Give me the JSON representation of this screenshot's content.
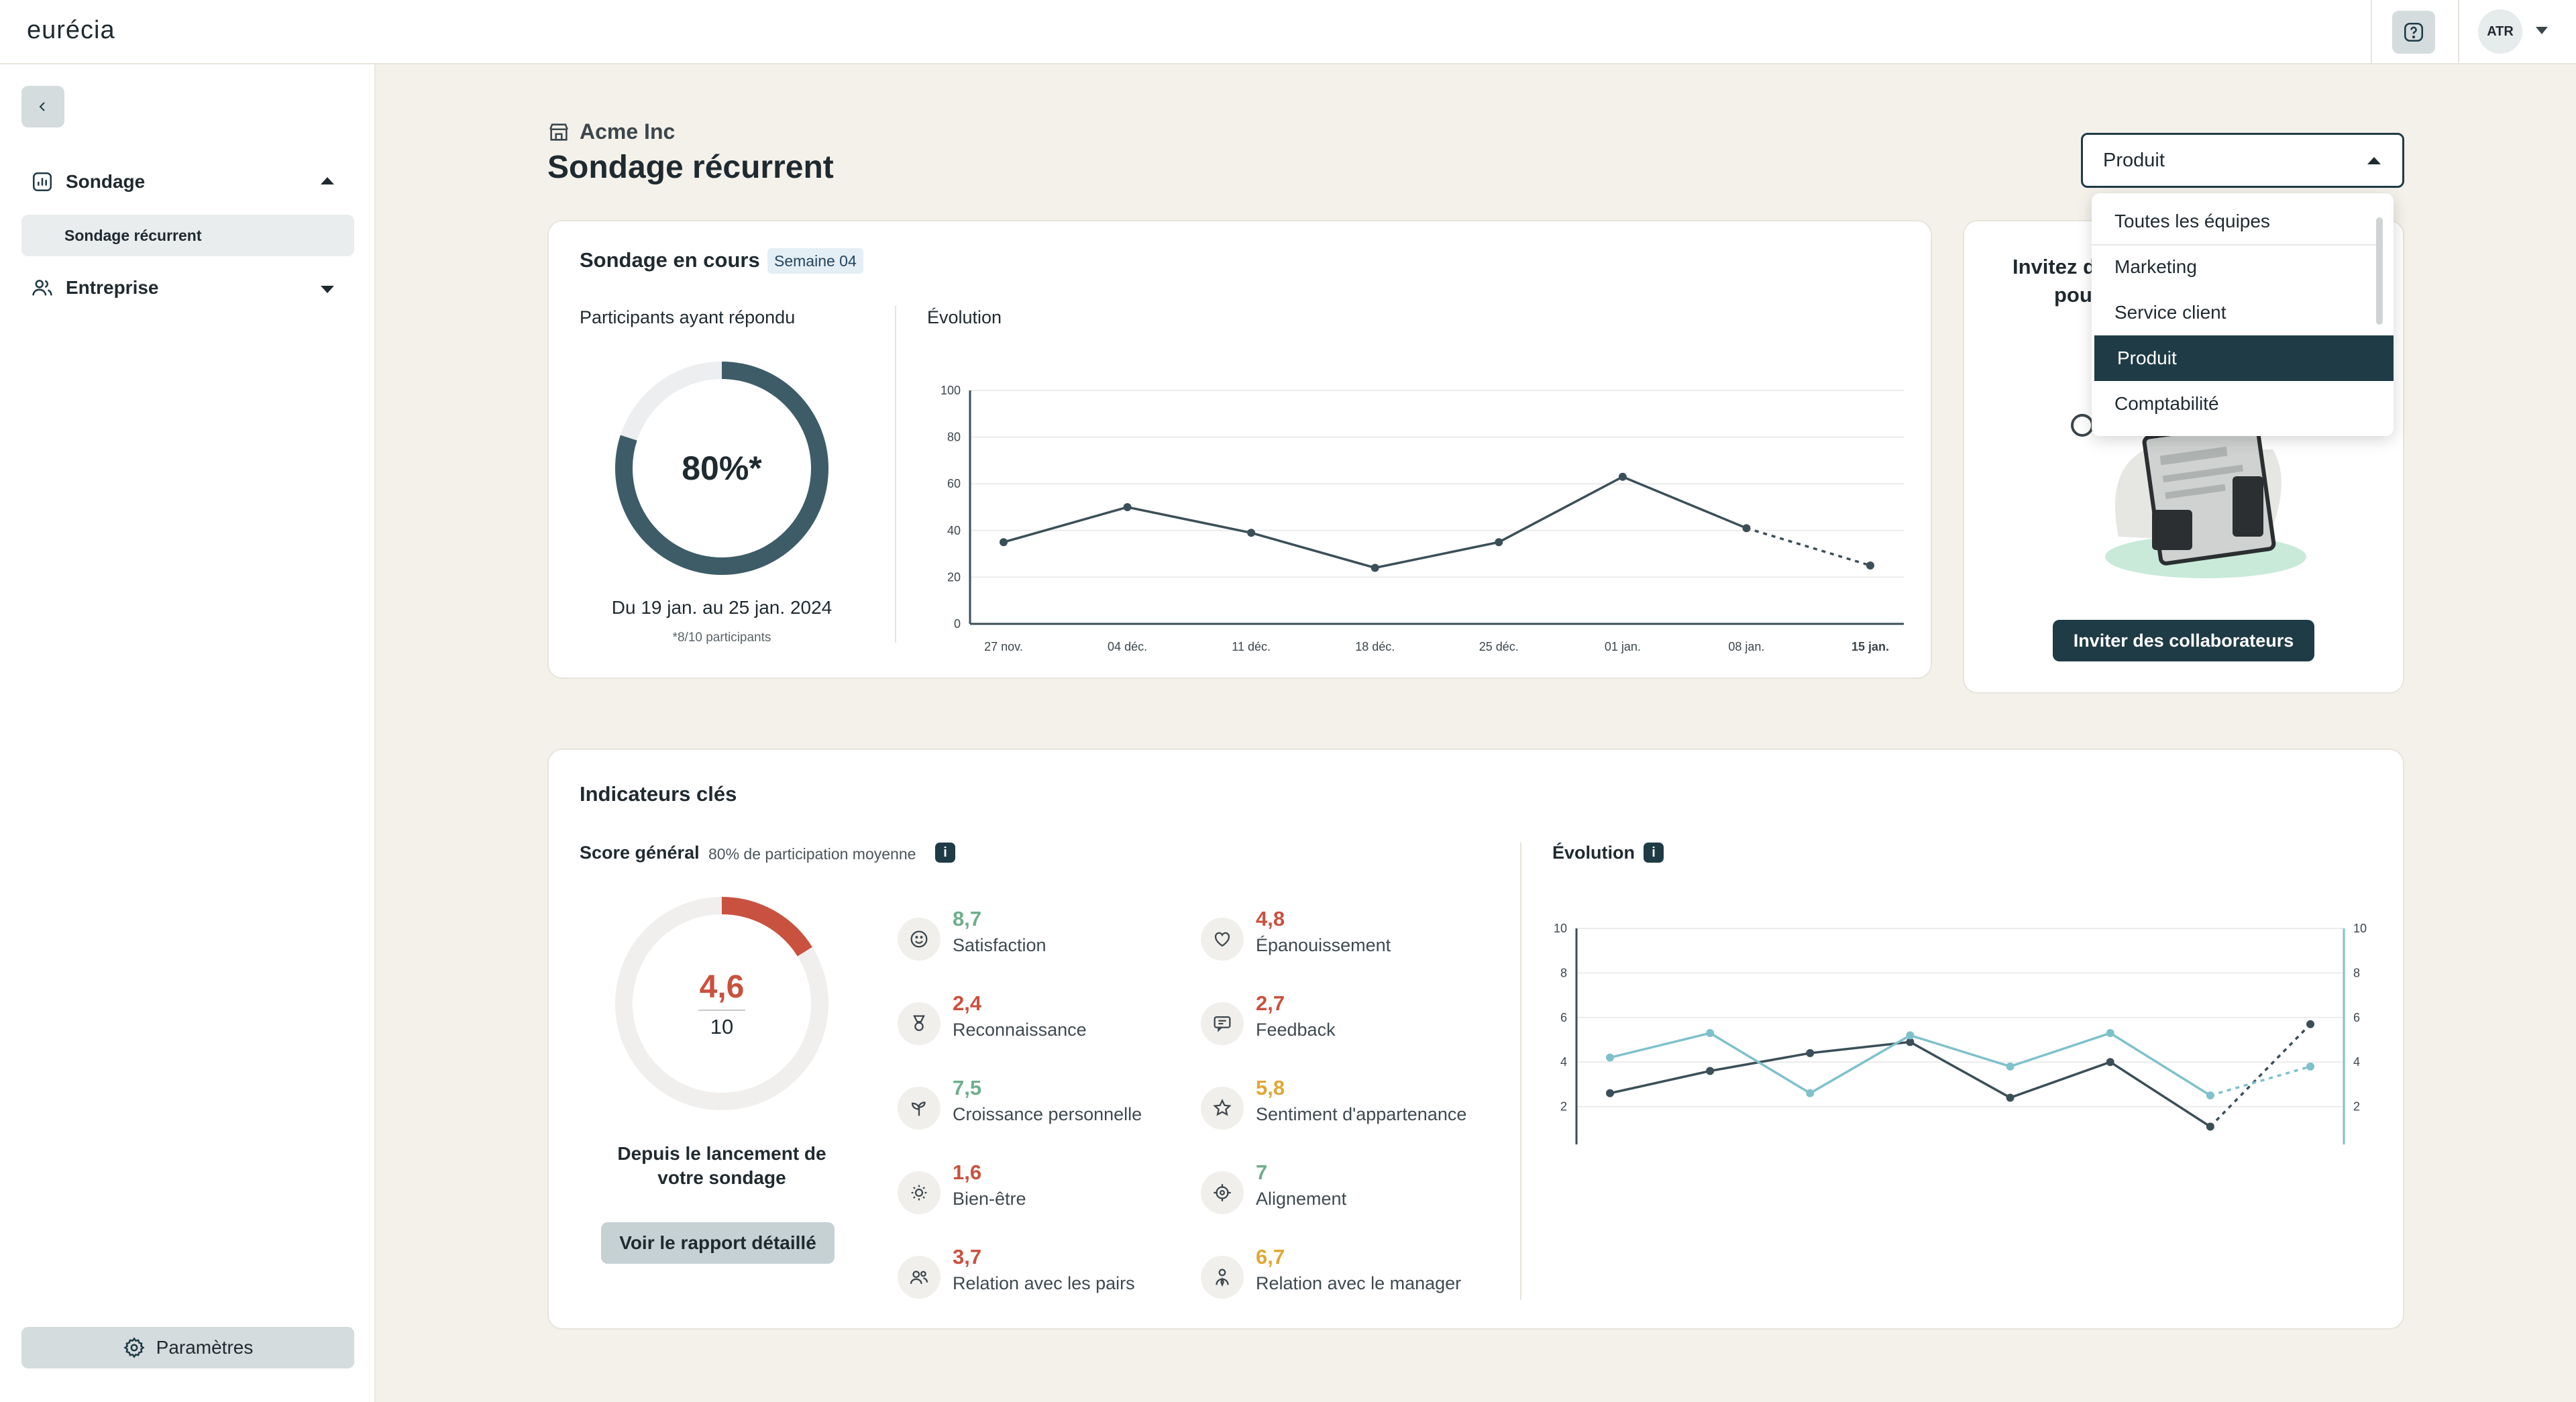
{
  "app": {
    "logo": "eurécia"
  },
  "header": {
    "help_icon": "help-icon",
    "user_initials": "ATR"
  },
  "sidebar": {
    "back_icon": "chevron-left-icon",
    "items": [
      {
        "label": "Sondage",
        "icon": "chart-icon",
        "expanded": true
      },
      {
        "label": "Entreprise",
        "icon": "people-icon",
        "expanded": false
      }
    ],
    "sub_items": [
      {
        "label": "Sondage récurrent",
        "active": true
      }
    ],
    "settings_label": "Paramètres"
  },
  "page": {
    "company": "Acme Inc",
    "title": "Sondage récurrent"
  },
  "team_select": {
    "value": "Produit",
    "options": [
      "Toutes les équipes",
      "Marketing",
      "Service client",
      "Produit",
      "Comptabilité"
    ],
    "selected_index": 3
  },
  "current_survey": {
    "title": "Sondage en cours",
    "badge": "Semaine  04",
    "participants_label": "Participants ayant répondu",
    "rate": "80%*",
    "rate_value": 80,
    "period": "Du 19 jan. au 25 jan. 2024",
    "note": "*8/10 participants",
    "evolution_label": "Évolution"
  },
  "invite_card": {
    "title_partial_1": "Invitez d",
    "title_partial_2": "pou",
    "button": "Inviter des collaborateurs"
  },
  "key_indicators": {
    "title": "Indicateurs clés",
    "score_label": "Score général",
    "participation": "80% de participation moyenne",
    "score": "4,6",
    "score_max": "10",
    "score_value": 4.6,
    "since_line1": "Depuis le lancement de",
    "since_line2": "votre sondage",
    "report_button": "Voir le rapport détaillé",
    "evolution_label": "Évolution",
    "items": [
      {
        "value": "8,7",
        "label": "Satisfaction",
        "icon": "smile-icon",
        "color": "#6fae8c"
      },
      {
        "value": "4,8",
        "label": "Épanouissement",
        "icon": "heart-icon",
        "color": "#c9513f"
      },
      {
        "value": "2,4",
        "label": "Reconnaissance",
        "icon": "medal-icon",
        "color": "#c9513f"
      },
      {
        "value": "2,7",
        "label": "Feedback",
        "icon": "message-icon",
        "color": "#c9513f"
      },
      {
        "value": "7,5",
        "label": "Croissance personnelle",
        "icon": "sprout-icon",
        "color": "#6fae8c"
      },
      {
        "value": "5,8",
        "label": "Sentiment d'appartenance",
        "icon": "star-icon",
        "color": "#e0a736"
      },
      {
        "value": "1,6",
        "label": "Bien-être",
        "icon": "sun-icon",
        "color": "#c9513f"
      },
      {
        "value": "7",
        "label": "Alignement",
        "icon": "target-icon",
        "color": "#6fae8c"
      },
      {
        "value": "3,7",
        "label": "Relation avec les pairs",
        "icon": "peers-icon",
        "color": "#c9513f"
      },
      {
        "value": "6,7",
        "label": "Relation avec le manager",
        "icon": "manager-icon",
        "color": "#e0a736"
      }
    ]
  },
  "colors": {
    "primary": "#1f3b46",
    "good": "#6fae8c",
    "bad": "#c9513f",
    "mid": "#e0a736",
    "teal_light": "#7fc1cb"
  },
  "chart_data": [
    {
      "type": "line",
      "title": "Évolution",
      "categories": [
        "27 nov.",
        "04 déc.",
        "11 déc.",
        "18 déc.",
        "25 déc.",
        "01 jan.",
        "08 jan.",
        "15 jan."
      ],
      "ylim": [
        0,
        100
      ],
      "yticks": [
        0,
        20,
        40,
        60,
        80,
        100
      ],
      "series": [
        {
          "values": [
            35,
            50,
            39,
            24,
            35,
            63,
            41,
            25
          ],
          "dashed_from_index": 6
        }
      ]
    },
    {
      "type": "line",
      "title": "Évolution",
      "categories": [
        "27 nov.",
        "04 déc.",
        "11 déc.",
        "18 déc.",
        "25 déc.",
        "01 jan.",
        "08 jan.",
        "15 jan."
      ],
      "ylim": [
        0,
        10
      ],
      "yticks": [
        0,
        2,
        4,
        6,
        8,
        10
      ],
      "series": [
        {
          "values": [
            2.6,
            3.6,
            4.4,
            4.9,
            2.4,
            4.0,
            1.1,
            5.7
          ],
          "color": "#3b4f58",
          "dashed_from_index": 6
        },
        {
          "values": [
            4.2,
            5.3,
            2.6,
            5.2,
            3.8,
            5.3,
            2.5,
            3.8
          ],
          "color": "#7fc1cb",
          "dashed_from_index": 6
        }
      ]
    }
  ]
}
